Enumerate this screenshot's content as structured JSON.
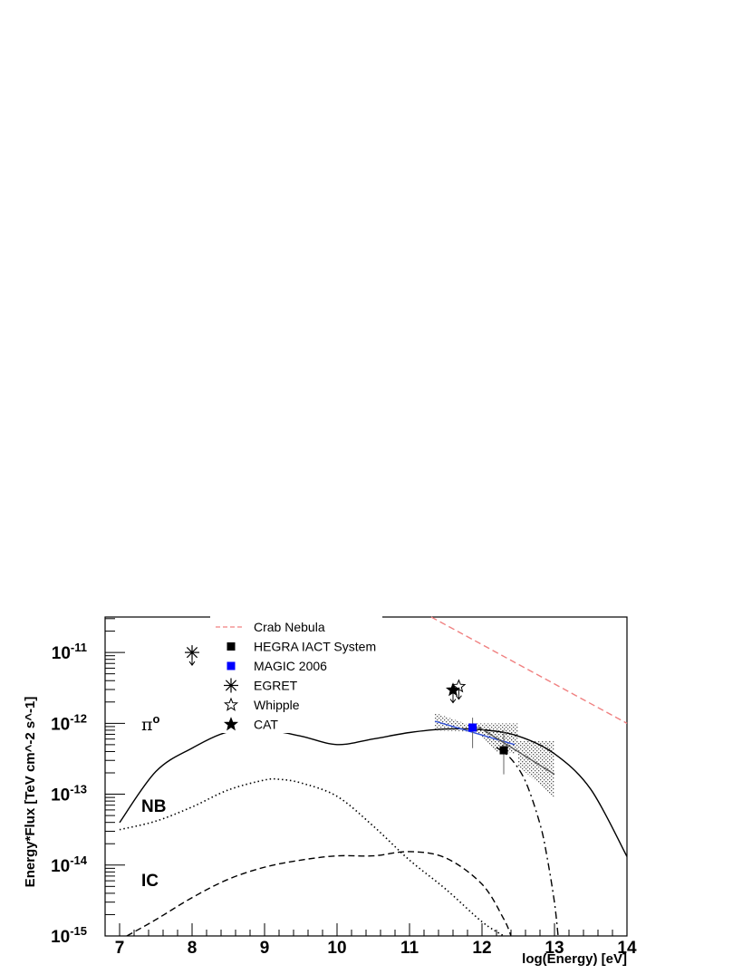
{
  "chart_data": {
    "type": "line",
    "xlabel": "log(Energy) [eV]",
    "ylabel": "Energy*Flux [TeV cm^-2 s^-1]",
    "xlim": [
      6.8,
      14
    ],
    "ylim_log10": [
      -15,
      -10.5
    ],
    "log_y": true,
    "grid": false,
    "legend_position": "top-center",
    "x_ticks": [
      "7",
      "8",
      "9",
      "10",
      "11",
      "12",
      "13",
      "14"
    ],
    "y_ticks": [
      {
        "base": "10",
        "exp": "-11"
      },
      {
        "base": "10",
        "exp": "-12"
      },
      {
        "base": "10",
        "exp": "-13"
      },
      {
        "base": "10",
        "exp": "-14"
      },
      {
        "base": "10",
        "exp": "-15"
      }
    ],
    "annotations": [
      {
        "name": "pi0",
        "text": "π",
        "sup": "o",
        "x": 7.3,
        "y_log": -12.1
      },
      {
        "name": "nb",
        "text": "NB",
        "x": 7.3,
        "y_log": -13.25
      },
      {
        "name": "ic",
        "text": "IC",
        "x": 7.3,
        "y_log": -14.3
      }
    ],
    "legend": [
      {
        "label": "Crab Nebula",
        "symbol": "dashed-line",
        "color": "#f08080"
      },
      {
        "label": "HEGRA IACT System",
        "symbol": "square",
        "color": "#000000"
      },
      {
        "label": "MAGIC 2006",
        "symbol": "square",
        "color": "#0000ff"
      },
      {
        "label": "EGRET",
        "symbol": "asterisk",
        "color": "#000000"
      },
      {
        "label": "Whipple",
        "symbol": "open-star",
        "color": "#000000"
      },
      {
        "label": "CAT",
        "symbol": "filled-star",
        "color": "#000000"
      }
    ],
    "series": [
      {
        "name": "π0 model",
        "style": "solid",
        "color": "#000000",
        "x": [
          7.0,
          7.5,
          8.0,
          8.5,
          9.0,
          9.5,
          10.0,
          10.5,
          11.0,
          11.5,
          12.0,
          12.5,
          13.0,
          13.5,
          14.0
        ],
        "y_log": [
          -13.4,
          -12.68,
          -12.35,
          -12.12,
          -12.09,
          -12.18,
          -12.3,
          -12.22,
          -12.13,
          -12.08,
          -12.09,
          -12.18,
          -12.43,
          -12.93,
          -13.88
        ]
      },
      {
        "name": "NB model",
        "style": "dotted",
        "color": "#000000",
        "x": [
          7.0,
          7.5,
          8.0,
          8.5,
          9.0,
          9.2,
          9.5,
          10.0,
          10.5,
          11.0,
          11.5,
          12.0,
          12.3
        ],
        "y_log": [
          -13.5,
          -13.38,
          -13.18,
          -12.94,
          -12.8,
          -12.79,
          -12.84,
          -13.03,
          -13.45,
          -13.93,
          -14.34,
          -14.8,
          -15.0
        ]
      },
      {
        "name": "IC model",
        "style": "dashed",
        "color": "#000000",
        "x": [
          7.1,
          7.5,
          8.0,
          8.5,
          9.0,
          9.5,
          10.0,
          10.5,
          11.0,
          11.5,
          12.0,
          12.3,
          12.4
        ],
        "y_log": [
          -15.0,
          -14.77,
          -14.46,
          -14.2,
          -14.03,
          -13.93,
          -13.87,
          -13.87,
          -13.81,
          -13.9,
          -14.27,
          -14.76,
          -15.0
        ]
      },
      {
        "name": "cutoff model",
        "style": "dash-dot",
        "color": "#000000",
        "x": [
          12.2,
          12.4,
          12.6,
          12.8,
          12.9,
          13.0,
          13.05
        ],
        "y_log": [
          -12.34,
          -12.5,
          -12.82,
          -13.42,
          -13.9,
          -14.53,
          -15.0
        ]
      },
      {
        "name": "Crab Nebula",
        "style": "dashed",
        "color": "#f08080",
        "x": [
          11.3,
          14.0
        ],
        "y_log": [
          -10.5,
          -12.0
        ]
      },
      {
        "name": "MAGIC 2006 fit",
        "style": "solid",
        "color": "#3050d8",
        "x": [
          11.35,
          12.45
        ],
        "y_log": [
          -11.97,
          -12.3
        ]
      },
      {
        "name": "HEGRA fit",
        "style": "solid",
        "color": "#555555",
        "x": [
          11.95,
          13.0
        ],
        "y_log": [
          -12.05,
          -12.72
        ]
      }
    ],
    "bands": [
      {
        "name": "MAGIC 2006 band",
        "upper": {
          "x": [
            11.35,
            11.9,
            12.45
          ],
          "y_log": [
            -11.85,
            -12.05,
            -12.15
          ]
        },
        "lower": {
          "x": [
            11.35,
            11.9,
            12.45
          ],
          "y_log": [
            -12.1,
            -12.12,
            -12.45
          ]
        }
      },
      {
        "name": "HEGRA band",
        "upper": {
          "x": [
            11.8,
            12.2,
            12.5,
            12.5,
            13.0
          ],
          "y_log": [
            -12.0,
            -12.0,
            -12.0,
            -12.25,
            -12.25
          ]
        },
        "lower": {
          "x": [
            12.2,
            12.5,
            12.5,
            13.0
          ],
          "y_log": [
            -12.4,
            -12.4,
            -12.6,
            -13.05
          ]
        }
      }
    ],
    "points": [
      {
        "name": "HEGRA IACT System",
        "marker": "square",
        "color": "#000000",
        "x": 12.3,
        "y_log": -12.38,
        "err_lo": -12.72,
        "err_hi": -12.1
      },
      {
        "name": "MAGIC 2006",
        "marker": "square",
        "color": "#0000ff",
        "x": 11.87,
        "y_log": -12.06,
        "err_lo": -12.35,
        "err_hi": -11.92
      },
      {
        "name": "EGRET",
        "marker": "asterisk",
        "color": "#000000",
        "x": 8.0,
        "y_log": -11.0,
        "upper_limit": true
      },
      {
        "name": "Whipple",
        "marker": "open-star",
        "color": "#000000",
        "x": 11.68,
        "y_log": -11.48,
        "upper_limit": true
      },
      {
        "name": "CAT",
        "marker": "filled-star",
        "color": "#000000",
        "x": 11.6,
        "y_log": -11.53,
        "upper_limit": true
      }
    ]
  }
}
